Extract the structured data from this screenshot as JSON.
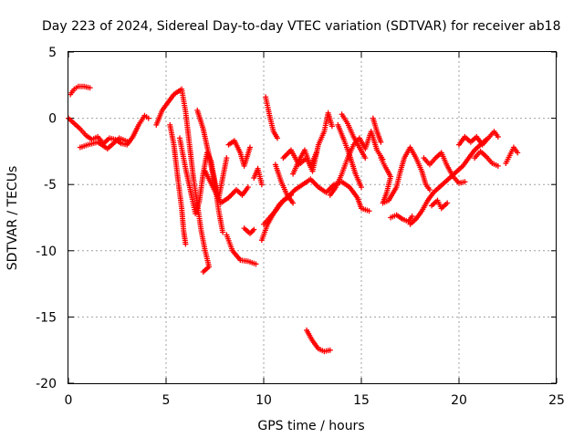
{
  "chart_data": {
    "type": "scatter",
    "title": "Day 223 of 2024, Sidereal Day-to-day VTEC variation (SDTVAR) for receiver ab18",
    "xlabel": "GPS time / hours",
    "ylabel": "SDTVAR / TECUs",
    "xlim": [
      0,
      25
    ],
    "ylim": [
      -20,
      5
    ],
    "xticks": [
      "0",
      "5",
      "10",
      "15",
      "20",
      "25"
    ],
    "yticks": [
      "5",
      "0",
      "-5",
      "-10",
      "-15",
      "-20"
    ],
    "grid": true,
    "marker": "+",
    "series_color": "#ff0000",
    "segments": [
      {
        "name": "seg-0",
        "points": [
          [
            0.1,
            1.8
          ],
          [
            0.3,
            2.2
          ],
          [
            0.5,
            2.4
          ],
          [
            0.8,
            2.4
          ],
          [
            1.1,
            2.3
          ]
        ]
      },
      {
        "name": "seg-1",
        "points": [
          [
            0.0,
            0.0
          ],
          [
            0.3,
            -0.4
          ],
          [
            0.6,
            -0.8
          ],
          [
            0.9,
            -1.3
          ],
          [
            1.2,
            -1.6
          ],
          [
            1.5,
            -1.4
          ],
          [
            1.8,
            -1.9
          ],
          [
            2.1,
            -1.5
          ],
          [
            2.4,
            -1.6
          ],
          [
            2.7,
            -1.9
          ],
          [
            3.0,
            -2.0
          ],
          [
            3.3,
            -1.4
          ],
          [
            3.6,
            -0.5
          ],
          [
            3.9,
            0.2
          ],
          [
            4.1,
            0.0
          ]
        ]
      },
      {
        "name": "seg-2",
        "points": [
          [
            0.6,
            -2.2
          ],
          [
            1.0,
            -2.0
          ],
          [
            1.5,
            -1.8
          ],
          [
            2.0,
            -2.3
          ],
          [
            2.6,
            -1.5
          ],
          [
            3.1,
            -1.8
          ]
        ]
      },
      {
        "name": "seg-3",
        "points": [
          [
            4.5,
            -0.5
          ],
          [
            4.8,
            0.6
          ],
          [
            5.1,
            1.2
          ],
          [
            5.4,
            1.8
          ],
          [
            5.8,
            2.2
          ],
          [
            6.0,
            0.5
          ],
          [
            6.2,
            -2.0
          ],
          [
            6.4,
            -4.5
          ],
          [
            6.6,
            -6.5
          ],
          [
            6.8,
            -8.5
          ],
          [
            7.0,
            -10.0
          ],
          [
            7.2,
            -11.2
          ],
          [
            6.9,
            -11.6
          ]
        ]
      },
      {
        "name": "seg-4",
        "points": [
          [
            5.2,
            -0.5
          ],
          [
            5.4,
            -2.0
          ],
          [
            5.6,
            -4.5
          ],
          [
            5.8,
            -6.8
          ],
          [
            5.9,
            -8.5
          ],
          [
            6.0,
            -9.5
          ]
        ]
      },
      {
        "name": "seg-5",
        "points": [
          [
            5.7,
            -1.5
          ],
          [
            6.0,
            -3.8
          ],
          [
            6.3,
            -5.8
          ],
          [
            6.5,
            -7.2
          ],
          [
            6.7,
            -6.3
          ],
          [
            6.9,
            -4.2
          ],
          [
            7.1,
            -2.6
          ],
          [
            7.3,
            -3.2
          ],
          [
            7.5,
            -4.8
          ],
          [
            7.7,
            -6.0
          ],
          [
            7.9,
            -4.5
          ],
          [
            8.1,
            -3.0
          ]
        ]
      },
      {
        "name": "seg-6",
        "points": [
          [
            6.6,
            0.6
          ],
          [
            6.9,
            -0.8
          ],
          [
            7.2,
            -2.8
          ],
          [
            7.5,
            -5.0
          ],
          [
            7.7,
            -7.0
          ],
          [
            7.9,
            -8.6
          ]
        ]
      },
      {
        "name": "seg-7",
        "points": [
          [
            7.0,
            -4.0
          ],
          [
            7.4,
            -5.2
          ],
          [
            7.8,
            -6.4
          ],
          [
            8.2,
            -6.0
          ],
          [
            8.6,
            -5.4
          ],
          [
            8.9,
            -5.8
          ],
          [
            9.2,
            -5.2
          ]
        ]
      },
      {
        "name": "seg-8",
        "points": [
          [
            8.1,
            -8.8
          ],
          [
            8.4,
            -10.0
          ],
          [
            8.8,
            -10.7
          ],
          [
            9.2,
            -10.8
          ],
          [
            9.6,
            -11.0
          ]
        ]
      },
      {
        "name": "seg-9",
        "points": [
          [
            8.2,
            -2.0
          ],
          [
            8.5,
            -1.7
          ],
          [
            8.8,
            -2.6
          ],
          [
            9.0,
            -3.6
          ],
          [
            9.3,
            -2.2
          ]
        ]
      },
      {
        "name": "seg-10",
        "points": [
          [
            9.0,
            -8.3
          ],
          [
            9.3,
            -8.7
          ],
          [
            9.5,
            -8.4
          ]
        ]
      },
      {
        "name": "seg-11",
        "points": [
          [
            9.5,
            -4.5
          ],
          [
            9.7,
            -3.8
          ],
          [
            9.9,
            -5.0
          ]
        ]
      },
      {
        "name": "seg-12",
        "points": [
          [
            10.1,
            1.6
          ],
          [
            10.3,
            0.2
          ],
          [
            10.5,
            -1.0
          ],
          [
            10.7,
            -1.5
          ]
        ]
      },
      {
        "name": "seg-13",
        "points": [
          [
            9.9,
            -9.2
          ],
          [
            10.2,
            -8.0
          ],
          [
            10.5,
            -7.2
          ],
          [
            10.8,
            -6.5
          ],
          [
            11.2,
            -6.0
          ],
          [
            11.6,
            -5.4
          ],
          [
            12.0,
            -5.0
          ],
          [
            12.4,
            -4.6
          ],
          [
            12.8,
            -5.2
          ],
          [
            13.2,
            -5.6
          ],
          [
            13.6,
            -5.0
          ],
          [
            14.0,
            -4.8
          ]
        ]
      },
      {
        "name": "seg-14",
        "points": [
          [
            10.6,
            -3.5
          ],
          [
            10.9,
            -4.8
          ],
          [
            11.2,
            -5.8
          ],
          [
            11.5,
            -6.4
          ]
        ]
      },
      {
        "name": "seg-15",
        "points": [
          [
            10.0,
            -8.0
          ],
          [
            10.3,
            -7.5
          ],
          [
            10.6,
            -7.0
          ],
          [
            11.0,
            -6.2
          ],
          [
            11.4,
            -5.8
          ]
        ]
      },
      {
        "name": "seg-16",
        "points": [
          [
            11.0,
            -3.0
          ],
          [
            11.4,
            -2.4
          ],
          [
            11.8,
            -3.5
          ],
          [
            12.2,
            -3.0
          ],
          [
            12.5,
            -4.0
          ],
          [
            12.8,
            -2.0
          ],
          [
            13.1,
            -1.0
          ],
          [
            13.3,
            0.4
          ],
          [
            13.5,
            -0.6
          ]
        ]
      },
      {
        "name": "seg-17",
        "points": [
          [
            11.5,
            -4.2
          ],
          [
            11.8,
            -3.2
          ],
          [
            12.1,
            -2.4
          ],
          [
            12.4,
            -3.6
          ],
          [
            12.7,
            -2.6
          ]
        ]
      },
      {
        "name": "seg-18",
        "points": [
          [
            12.2,
            -16.0
          ],
          [
            12.5,
            -16.8
          ],
          [
            12.8,
            -17.4
          ],
          [
            13.1,
            -17.6
          ],
          [
            13.4,
            -17.5
          ]
        ]
      },
      {
        "name": "seg-19",
        "points": [
          [
            13.4,
            -5.8
          ],
          [
            13.7,
            -5.2
          ],
          [
            14.0,
            -4.2
          ],
          [
            14.3,
            -3.0
          ],
          [
            14.6,
            -2.0
          ],
          [
            14.9,
            -1.5
          ],
          [
            15.2,
            -2.3
          ],
          [
            15.5,
            -1.0
          ],
          [
            15.8,
            -2.4
          ],
          [
            16.1,
            -3.1
          ]
        ]
      },
      {
        "name": "seg-20",
        "points": [
          [
            13.8,
            -0.5
          ],
          [
            14.1,
            -1.6
          ],
          [
            14.4,
            -2.8
          ],
          [
            14.7,
            -4.2
          ],
          [
            15.0,
            -5.2
          ]
        ]
      },
      {
        "name": "seg-21",
        "points": [
          [
            14.0,
            0.3
          ],
          [
            14.3,
            -0.4
          ],
          [
            14.6,
            -1.4
          ],
          [
            14.9,
            -2.2
          ],
          [
            15.2,
            -3.0
          ]
        ]
      },
      {
        "name": "seg-22",
        "points": [
          [
            14.0,
            -4.8
          ],
          [
            14.4,
            -5.2
          ],
          [
            14.8,
            -6.0
          ],
          [
            15.0,
            -6.8
          ],
          [
            15.4,
            -7.0
          ]
        ]
      },
      {
        "name": "seg-23",
        "points": [
          [
            15.6,
            0.0
          ],
          [
            15.8,
            -1.0
          ],
          [
            16.0,
            -1.8
          ]
        ]
      },
      {
        "name": "seg-24",
        "points": [
          [
            16.0,
            -3.0
          ],
          [
            16.2,
            -3.6
          ],
          [
            16.5,
            -4.4
          ],
          [
            16.3,
            -5.6
          ],
          [
            16.1,
            -6.4
          ],
          [
            16.4,
            -6.2
          ],
          [
            16.8,
            -5.2
          ],
          [
            17.0,
            -4.0
          ],
          [
            17.2,
            -3.0
          ],
          [
            17.5,
            -2.2
          ],
          [
            17.8,
            -3.0
          ],
          [
            18.1,
            -4.0
          ],
          [
            18.3,
            -5.0
          ],
          [
            18.5,
            -5.4
          ]
        ]
      },
      {
        "name": "seg-25",
        "points": [
          [
            16.5,
            -7.5
          ],
          [
            16.8,
            -7.3
          ],
          [
            17.1,
            -7.6
          ],
          [
            17.4,
            -7.8
          ],
          [
            17.6,
            -7.4
          ]
        ]
      },
      {
        "name": "seg-26",
        "points": [
          [
            17.5,
            -8.0
          ],
          [
            17.8,
            -7.6
          ],
          [
            18.1,
            -7.0
          ],
          [
            18.4,
            -6.2
          ],
          [
            18.7,
            -5.6
          ],
          [
            19.0,
            -5.2
          ],
          [
            19.3,
            -4.8
          ],
          [
            19.6,
            -4.4
          ],
          [
            19.9,
            -4.0
          ],
          [
            20.2,
            -3.6
          ],
          [
            20.5,
            -3.0
          ],
          [
            20.8,
            -2.4
          ],
          [
            21.1,
            -2.0
          ],
          [
            21.4,
            -1.6
          ]
        ]
      },
      {
        "name": "seg-27",
        "points": [
          [
            18.2,
            -3.0
          ],
          [
            18.5,
            -3.5
          ],
          [
            18.8,
            -3.0
          ],
          [
            19.1,
            -2.6
          ],
          [
            19.4,
            -3.6
          ],
          [
            19.7,
            -4.4
          ],
          [
            20.0,
            -4.9
          ],
          [
            20.3,
            -4.8
          ]
        ]
      },
      {
        "name": "seg-28",
        "points": [
          [
            18.6,
            -6.6
          ],
          [
            18.9,
            -6.2
          ],
          [
            19.1,
            -6.8
          ],
          [
            19.4,
            -6.4
          ]
        ]
      },
      {
        "name": "seg-29",
        "points": [
          [
            20.0,
            -2.0
          ],
          [
            20.3,
            -1.4
          ],
          [
            20.6,
            -1.8
          ],
          [
            20.9,
            -1.4
          ],
          [
            21.2,
            -2.0
          ],
          [
            21.5,
            -1.5
          ],
          [
            21.8,
            -1.0
          ],
          [
            22.0,
            -1.4
          ]
        ]
      },
      {
        "name": "seg-30",
        "points": [
          [
            20.8,
            -3.0
          ],
          [
            21.1,
            -2.5
          ],
          [
            21.4,
            -2.9
          ],
          [
            21.7,
            -3.4
          ],
          [
            22.0,
            -3.6
          ]
        ]
      },
      {
        "name": "seg-31",
        "points": [
          [
            22.4,
            -3.4
          ],
          [
            22.6,
            -2.8
          ],
          [
            22.8,
            -2.2
          ],
          [
            23.0,
            -2.6
          ]
        ]
      }
    ]
  }
}
